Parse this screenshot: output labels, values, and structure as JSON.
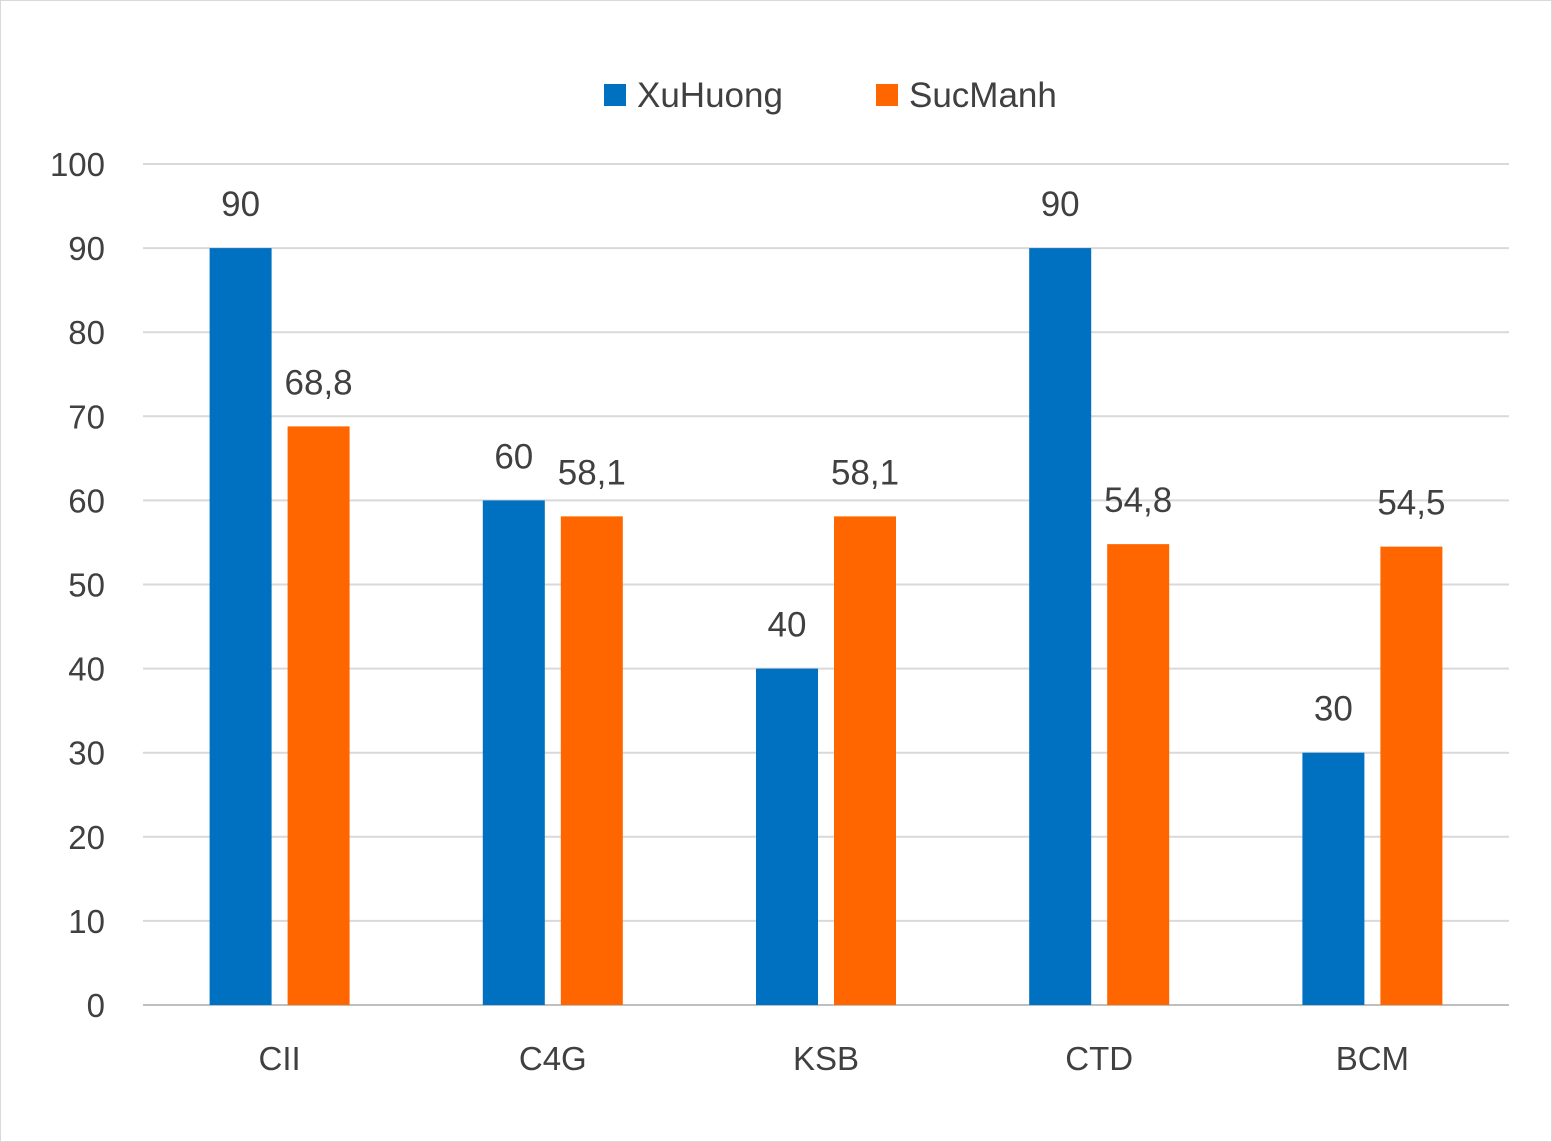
{
  "chart_data": {
    "type": "bar",
    "categories": [
      "CII",
      "C4G",
      "KSB",
      "CTD",
      "BCM"
    ],
    "series": [
      {
        "name": "XuHuong",
        "color": "#0070C0",
        "values": [
          90,
          60,
          40,
          90,
          30
        ],
        "labels": [
          "90",
          "60",
          "40",
          "90",
          "30"
        ]
      },
      {
        "name": "SucManh",
        "color": "#FF6600",
        "values": [
          68.8,
          58.1,
          58.1,
          54.8,
          54.5
        ],
        "labels": [
          "68,8",
          "58,1",
          "58,1",
          "54,8",
          "54,5"
        ]
      }
    ],
    "ylim": [
      0,
      100
    ],
    "yticks": [
      "0",
      "10",
      "20",
      "30",
      "40",
      "50",
      "60",
      "70",
      "80",
      "90",
      "100"
    ],
    "grid": true,
    "legend_position": "top-center",
    "title": "",
    "xlabel": "",
    "ylabel": ""
  }
}
